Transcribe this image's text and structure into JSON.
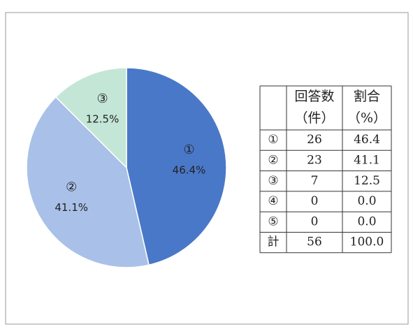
{
  "chart_data": {
    "type": "pie",
    "categories": [
      "①",
      "②",
      "③"
    ],
    "values": [
      46.4,
      41.1,
      12.5
    ],
    "value_labels": [
      "46.4%",
      "41.1%",
      "12.5%"
    ],
    "colors": [
      "#4a78c8",
      "#a9c1e8",
      "#c4e6d6"
    ]
  },
  "table": {
    "header": [
      [
        "回答数",
        "割合"
      ],
      [
        "（件）",
        "（%）"
      ]
    ],
    "rows": [
      [
        "①",
        "26",
        "46.4"
      ],
      [
        "②",
        "23",
        "41.1"
      ],
      [
        "③",
        "7",
        "12.5"
      ],
      [
        "④",
        "0",
        "0.0"
      ],
      [
        "⑤",
        "0",
        "0.0"
      ],
      [
        "計",
        "56",
        "100.0"
      ]
    ]
  }
}
